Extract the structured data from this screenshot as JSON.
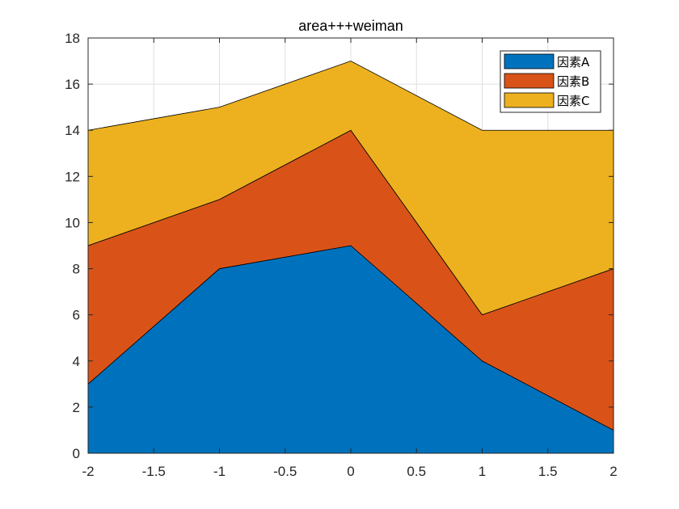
{
  "chart_data": {
    "type": "area",
    "stacked": true,
    "title": "area+++weiman",
    "xlabel": "",
    "ylabel": "",
    "x": [
      -2,
      -1,
      0,
      1,
      2
    ],
    "series": [
      {
        "name": "因素A",
        "values": [
          3,
          8,
          9,
          4,
          1
        ],
        "color": "#0072BD"
      },
      {
        "name": "因素B",
        "values": [
          6,
          3,
          5,
          2,
          7
        ],
        "color": "#D95319"
      },
      {
        "name": "因素C",
        "values": [
          5,
          4,
          3,
          8,
          6
        ],
        "color": "#EDB120"
      }
    ],
    "xlim": [
      -2,
      2
    ],
    "ylim": [
      0,
      18
    ],
    "xticks": [
      -2,
      -1.5,
      -1,
      -0.5,
      0,
      0.5,
      1,
      1.5,
      2
    ],
    "xtick_labels": [
      "-2",
      "-1.5",
      "-1",
      "-0.5",
      "0",
      "0.5",
      "1",
      "1.5",
      "2"
    ],
    "yticks": [
      0,
      2,
      4,
      6,
      8,
      10,
      12,
      14,
      16,
      18
    ],
    "ytick_labels": [
      "0",
      "2",
      "4",
      "6",
      "8",
      "10",
      "12",
      "14",
      "16",
      "18"
    ],
    "grid": true,
    "legend_position": "top-right"
  }
}
